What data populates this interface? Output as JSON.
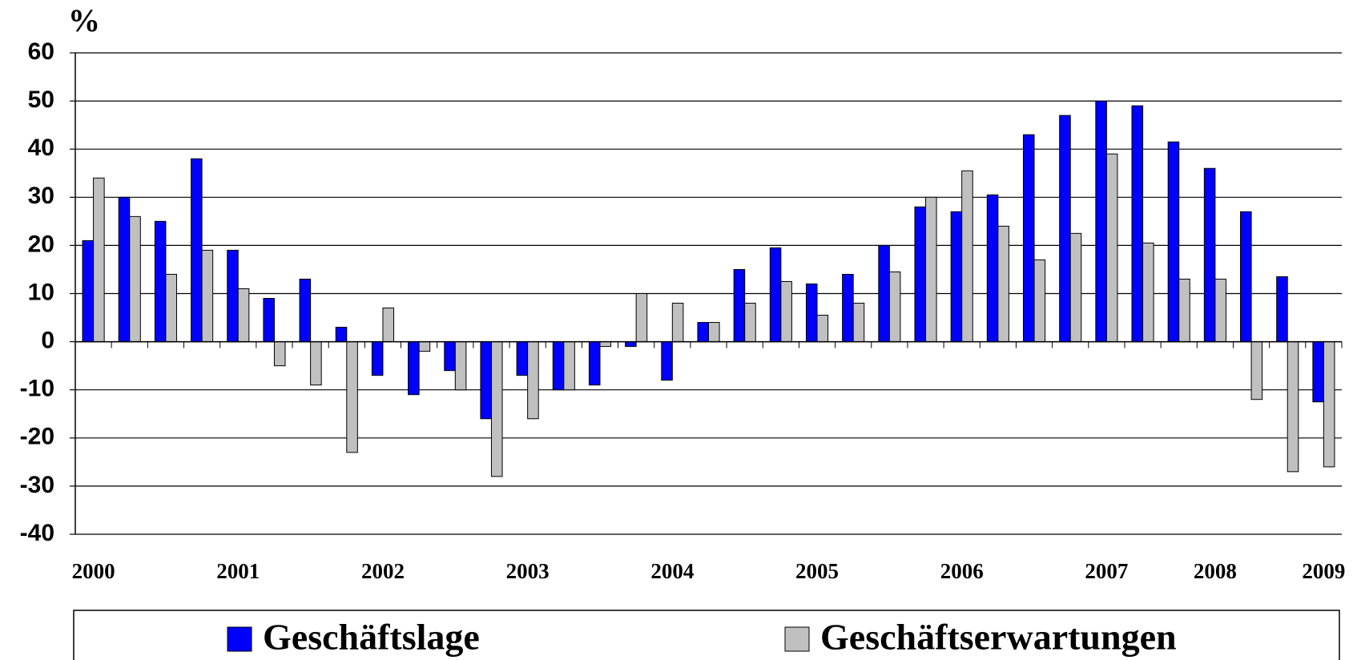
{
  "chart_data": {
    "type": "bar",
    "y_label": "%",
    "categories": [
      "2000",
      null,
      null,
      null,
      "2001",
      null,
      null,
      null,
      "2002",
      null,
      null,
      null,
      "2003",
      null,
      null,
      null,
      "2004",
      null,
      null,
      null,
      "2005",
      null,
      null,
      null,
      "2006",
      null,
      null,
      null,
      "2007",
      null,
      null,
      "2008",
      null,
      null,
      "2009"
    ],
    "series": [
      {
        "name": "Geschäftslage",
        "color": "#0000ff",
        "values": [
          21,
          30,
          25,
          38,
          19,
          9,
          13,
          3,
          -7,
          -11,
          -6,
          -16,
          -7,
          -10,
          -9,
          -1,
          -8,
          4,
          15,
          19.5,
          12,
          14,
          20,
          28,
          27,
          30.5,
          43,
          47,
          50,
          49,
          41.5,
          36,
          27,
          13.5,
          -12.5
        ]
      },
      {
        "name": "Geschäftserwartungen",
        "color": "#c0c0c0",
        "values": [
          34,
          26,
          14,
          19,
          11,
          -5,
          -9,
          -23,
          7,
          -2,
          -10,
          -28,
          -16,
          -10,
          -1,
          10,
          8,
          4,
          8,
          12.5,
          5.5,
          8,
          14.5,
          30,
          35.5,
          24,
          17,
          22.5,
          39,
          20.5,
          13,
          13,
          -12,
          -27,
          -26
        ]
      }
    ],
    "ylim": [
      -40,
      60
    ],
    "yticks": [
      -40,
      -30,
      -20,
      -10,
      0,
      10,
      20,
      30,
      40,
      50,
      60
    ],
    "grid": true
  }
}
